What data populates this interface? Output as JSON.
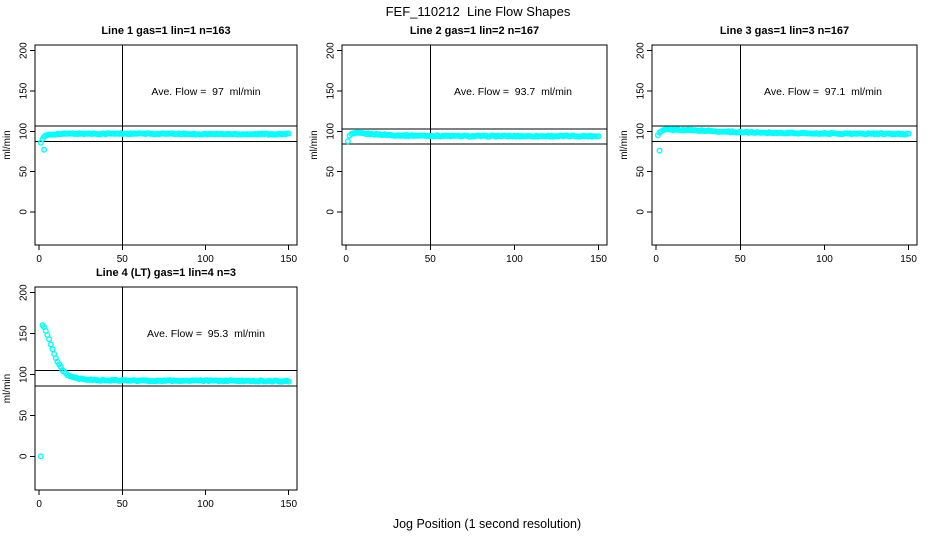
{
  "title": "FEF_110212  Line Flow Shapes",
  "xlabel": "Jog Position (1 second resolution)",
  "colors": {
    "series": "#00ffff",
    "axis": "#000000",
    "background": "#ffffff"
  },
  "chart_data": {
    "type": "scatter",
    "title": "FEF_110212  Line Flow Shapes",
    "xlabel": "Jog Position (1 second resolution)",
    "ylabel": "ml/min",
    "x_ticks": [
      0,
      50,
      100,
      150
    ],
    "y_ticks": [
      0,
      50,
      100,
      150,
      200
    ],
    "xlim": [
      0,
      155
    ],
    "ylim": [
      -41,
      207
    ],
    "grid": false,
    "legend": "none",
    "marker": "open-circle",
    "series_color": "#00ffff",
    "panels": [
      {
        "title": "Line 1 gas=1 lin=1 n=163",
        "gas": 1,
        "lin": 1,
        "n": 163,
        "annotation": "Ave. Flow =  97  ml/min",
        "ave_flow_ml_min": 97,
        "vline_x": 50,
        "hlines": [
          106.7,
          87.3
        ],
        "keypoints": [
          [
            1,
            86
          ],
          [
            2,
            90
          ],
          [
            3,
            93
          ],
          [
            4,
            94.5
          ],
          [
            6,
            96
          ],
          [
            10,
            96.5
          ],
          [
            20,
            97
          ],
          [
            60,
            97
          ],
          [
            100,
            96.5
          ],
          [
            150,
            96.5
          ]
        ],
        "outliers": [
          [
            3,
            77
          ]
        ]
      },
      {
        "title": "Line 2 gas=1 lin=2 n=167",
        "gas": 1,
        "lin": 2,
        "n": 167,
        "annotation": "Ave. Flow =  93.7  ml/min",
        "ave_flow_ml_min": 93.7,
        "vline_x": 50,
        "hlines": [
          103.1,
          84.3
        ],
        "keypoints": [
          [
            1,
            88
          ],
          [
            2,
            94
          ],
          [
            3,
            96.5
          ],
          [
            5,
            97.5
          ],
          [
            8,
            97.5
          ],
          [
            12,
            97
          ],
          [
            20,
            96
          ],
          [
            30,
            95
          ],
          [
            45,
            94.5
          ],
          [
            70,
            94
          ],
          [
            150,
            94
          ]
        ],
        "outliers": []
      },
      {
        "title": "Line 3 gas=1 lin=3 n=167",
        "gas": 1,
        "lin": 3,
        "n": 167,
        "annotation": "Ave. Flow =  97.1  ml/min",
        "ave_flow_ml_min": 97.1,
        "vline_x": 50,
        "hlines": [
          106.8,
          87.4
        ],
        "keypoints": [
          [
            1,
            95
          ],
          [
            2,
            98
          ],
          [
            4,
            101
          ],
          [
            6,
            102
          ],
          [
            12,
            102
          ],
          [
            25,
            101
          ],
          [
            40,
            99.5
          ],
          [
            60,
            98.5
          ],
          [
            90,
            97.5
          ],
          [
            120,
            97
          ],
          [
            150,
            96.5
          ]
        ],
        "outliers": [
          [
            2,
            76
          ]
        ]
      },
      {
        "title": "Line 4 (LT) gas=1 lin=4 n=3",
        "gas": 1,
        "lin": 4,
        "n": 3,
        "annotation": "Ave. Flow =  95.3  ml/min",
        "ave_flow_ml_min": 95.3,
        "vline_x": 50,
        "hlines": [
          104.8,
          85.8
        ],
        "keypoints": [
          [
            2,
            160
          ],
          [
            3,
            158
          ],
          [
            4,
            154
          ],
          [
            5,
            149
          ],
          [
            6,
            143
          ],
          [
            7,
            137
          ],
          [
            8,
            131
          ],
          [
            9,
            125
          ],
          [
            10,
            120
          ],
          [
            11,
            116
          ],
          [
            12,
            112
          ],
          [
            13,
            109
          ],
          [
            14,
            106
          ],
          [
            15,
            103.5
          ],
          [
            16,
            101.5
          ],
          [
            17,
            100
          ],
          [
            18,
            98.5
          ],
          [
            20,
            96.5
          ],
          [
            22,
            95.5
          ],
          [
            25,
            94.5
          ],
          [
            30,
            93.5
          ],
          [
            40,
            93
          ],
          [
            60,
            92.5
          ],
          [
            100,
            92.5
          ],
          [
            150,
            92
          ]
        ],
        "outliers": [
          [
            1,
            0
          ]
        ]
      }
    ]
  }
}
